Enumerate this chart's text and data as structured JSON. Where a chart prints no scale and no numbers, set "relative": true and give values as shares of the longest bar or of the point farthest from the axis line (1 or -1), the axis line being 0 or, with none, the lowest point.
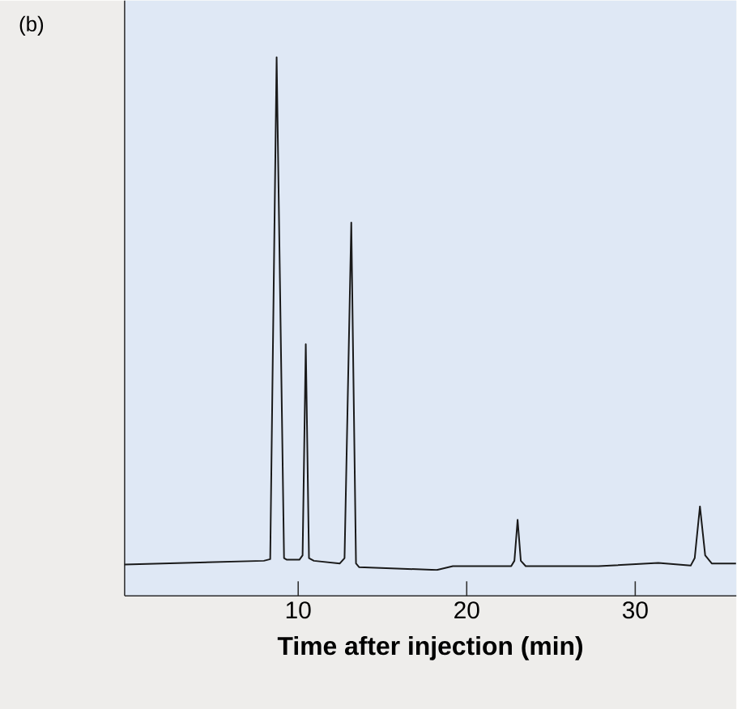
{
  "chart_data": {
    "type": "line",
    "relative": true,
    "xlabel": "Time after injection (min)",
    "annotations": [
      "(b)"
    ],
    "xlim": [
      -0.3,
      36
    ],
    "xticks": [
      10,
      20,
      30
    ],
    "series": [
      {
        "color": "#1a1a1a",
        "x": [
          -0.3,
          7.96,
          8.34,
          8.72,
          9.16,
          9.33,
          10.07,
          10.26,
          10.45,
          10.64,
          10.93,
          12.47,
          12.75,
          13.15,
          13.43,
          13.62,
          18.22,
          19.18,
          22.64,
          22.83,
          23.02,
          23.21,
          23.5,
          27.82,
          31.37,
          33.29,
          33.53,
          33.84,
          34.15,
          34.54,
          35.98
        ],
        "values": [
          0.058,
          0.065,
          0.068,
          1,
          0.07,
          0.067,
          0.067,
          0.075,
          0.467,
          0.07,
          0.065,
          0.06,
          0.07,
          0.693,
          0.06,
          0.053,
          0.048,
          0.055,
          0.055,
          0.065,
          0.141,
          0.065,
          0.055,
          0.055,
          0.061,
          0.056,
          0.07,
          0.166,
          0.075,
          0.06,
          0.06
        ]
      }
    ]
  }
}
